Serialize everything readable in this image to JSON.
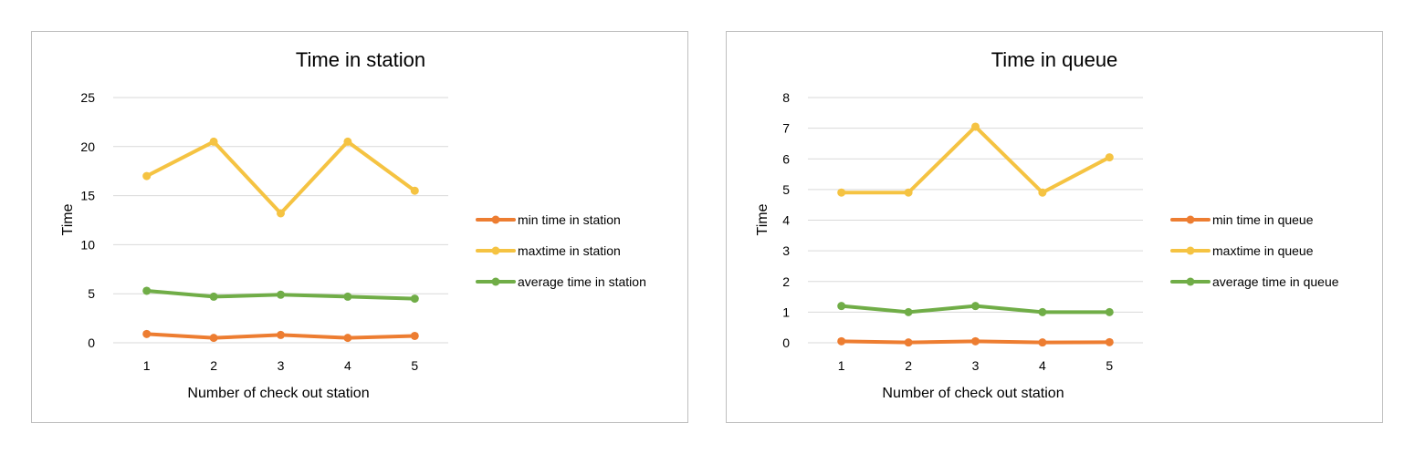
{
  "chart_data": [
    {
      "type": "line",
      "title": "Time in station",
      "xlabel": "Number of check out station",
      "ylabel": "Time",
      "categories": [
        "1",
        "2",
        "3",
        "4",
        "5"
      ],
      "ylim": [
        0,
        25
      ],
      "yticks": [
        "0",
        "5",
        "10",
        "15",
        "20",
        "25"
      ],
      "grid": true,
      "legend_position": "right",
      "series": [
        {
          "name": "min time in station",
          "color": "#ED7D31",
          "values": [
            0.9,
            0.5,
            0.8,
            0.5,
            0.7
          ]
        },
        {
          "name": "maxtime in station",
          "color": "#F5C342",
          "values": [
            17.0,
            20.5,
            13.2,
            20.5,
            15.5
          ]
        },
        {
          "name": "average time in station",
          "color": "#70AD47",
          "values": [
            5.3,
            4.7,
            4.9,
            4.7,
            4.5
          ]
        }
      ]
    },
    {
      "type": "line",
      "title": "Time in queue",
      "xlabel": "Number of check out station",
      "ylabel": "Time",
      "categories": [
        "1",
        "2",
        "3",
        "4",
        "5"
      ],
      "ylim": [
        0,
        8
      ],
      "yticks": [
        "0",
        "1",
        "2",
        "3",
        "4",
        "5",
        "6",
        "7",
        "8"
      ],
      "grid": true,
      "legend_position": "right",
      "series": [
        {
          "name": "min time in queue",
          "color": "#ED7D31",
          "values": [
            0.05,
            0.01,
            0.05,
            0.01,
            0.02
          ]
        },
        {
          "name": "maxtime in queue",
          "color": "#F5C342",
          "values": [
            4.9,
            4.9,
            7.05,
            4.9,
            6.05
          ]
        },
        {
          "name": "average time in queue",
          "color": "#70AD47",
          "values": [
            1.2,
            1.0,
            1.2,
            1.0,
            1.0
          ]
        }
      ]
    }
  ]
}
